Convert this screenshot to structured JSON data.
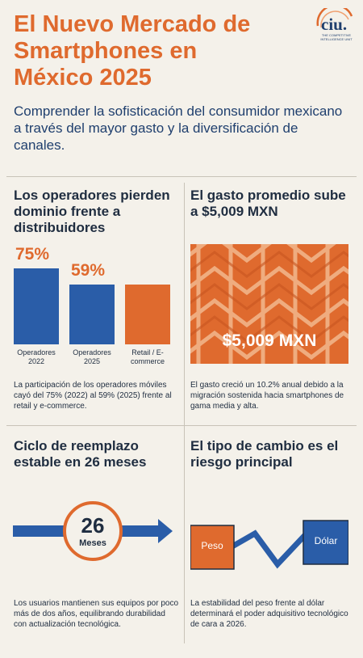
{
  "header": {
    "title": "El Nuevo Mercado de Smartphones en México 2025",
    "subtitle": "Comprender la sofisticación del consumidor mexicano a través del mayor gasto y la diversificación de canales.",
    "logo": {
      "name": "ciu.",
      "tagline": "THE COMPETITIVE INTELLIGENCE UNIT"
    }
  },
  "operators": {
    "title": "Los operadores pierden dominio frente a distribuidores",
    "bars": [
      {
        "label": "Operadores 2022",
        "value_label": "75%",
        "value": 75,
        "color": "#2a5da8"
      },
      {
        "label": "Operadores 2025",
        "value_label": "59%",
        "value": 59,
        "color": "#2a5da8"
      },
      {
        "label": "Retail / E-commerce",
        "value_label": "",
        "value": 59,
        "color": "#df6a2e"
      }
    ],
    "description": "La participación de los operadores móviles cayó del 75% (2022) al 59% (2025) frente al retail y e-commerce."
  },
  "spending": {
    "title": "El gasto promedio sube a $5,009 MXN",
    "value": "$5,009 MXN",
    "description": "El gasto creció un 10.2% anual debido a la migración sostenida hacia smartphones de gama media y alta."
  },
  "cycle": {
    "title": "Ciclo de reemplazo estable en 26 meses",
    "number": "26",
    "unit": "Meses",
    "description": "Los usuarios mantienen sus equipos por poco más de dos años, equilibrando durabilidad con actualización tecnológica."
  },
  "exchange": {
    "title": "El tipo de cambio es el riesgo principal",
    "left_label": "Peso",
    "right_label": "Dólar",
    "description": "La estabilidad del peso frente al dólar determinará el poder adquisitivo tecnológico de cara a 2026."
  },
  "colors": {
    "orange": "#df6a2e",
    "blue": "#2a5da8",
    "navy": "#1f2d40",
    "background": "#f4f1ea"
  }
}
